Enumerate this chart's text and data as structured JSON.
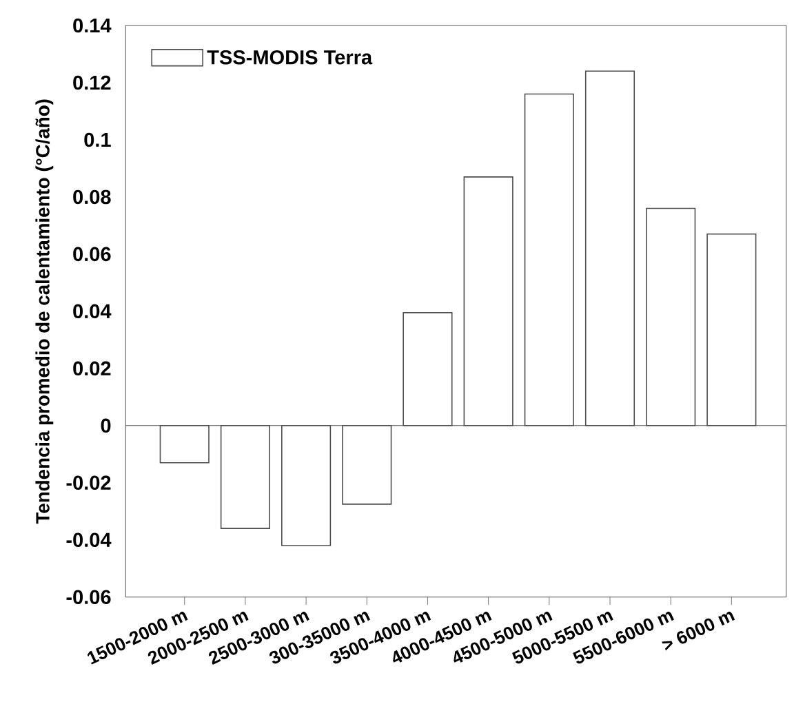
{
  "chart_data": {
    "type": "bar",
    "ylabel": "Tendencia promedio de calentamiento (°C/año)",
    "categories": [
      "1500-2000 m",
      "2000-2500 m",
      "2500-3000 m",
      "300-35000 m",
      "3500-4000 m",
      "4000-4500 m",
      "4500-5000 m",
      "5000-5500 m",
      "5500-6000 m",
      "> 6000 m"
    ],
    "series": [
      {
        "name": "TSS-MODIS Terra",
        "color": "#ffffff",
        "values": [
          -0.013,
          -0.036,
          -0.042,
          -0.0275,
          0.0395,
          0.087,
          0.116,
          0.124,
          0.076,
          0.067
        ]
      }
    ],
    "ylim": [
      -0.06,
      0.14
    ],
    "yticks": [
      -0.06,
      -0.04,
      -0.02,
      0,
      0.02,
      0.04,
      0.06,
      0.08,
      0.1,
      0.12,
      0.14
    ],
    "ref_lines": [
      {
        "axis": "y",
        "value": 0
      }
    ],
    "legend": "top left",
    "grid": false
  }
}
